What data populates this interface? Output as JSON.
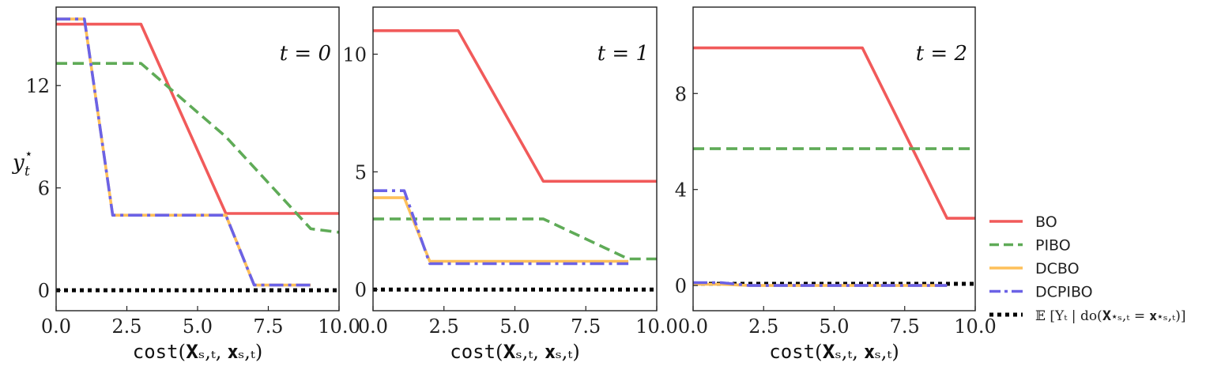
{
  "figure": {
    "ylabel": "y",
    "ylabel_sub": "t",
    "ylabel_sup": "⋆"
  },
  "legend": {
    "position": "right",
    "items": [
      {
        "label": "BO",
        "color": "#f15a5a",
        "style": "solid"
      },
      {
        "label": "PIBO",
        "color": "#5fab57",
        "style": "dashed"
      },
      {
        "label": "DCBO",
        "color": "#fec05a",
        "style": "solid"
      },
      {
        "label": "DCPIBO",
        "color": "#6b62e6",
        "style": "dashdot"
      },
      {
        "label": "𝔼 [Yₜ | do(𝐗⋆ₛ,ₜ = 𝐱⋆ₛ,ₜ)]",
        "color": "#000000",
        "style": "dotted"
      }
    ]
  },
  "chart_data": [
    {
      "type": "line",
      "title": "t = 0",
      "xlabel_prefix": "cost",
      "xlabel_math": "(𝐗ₛ,ₜ, 𝐱ₛ,ₜ)",
      "xlim": [
        0,
        10
      ],
      "ylim": [
        -1.2,
        16.6
      ],
      "xticks": [
        0.0,
        2.5,
        5.0,
        7.5,
        10.0
      ],
      "xtick_labels": [
        "0.0",
        "2.5",
        "5.0",
        "7.5",
        "10.0"
      ],
      "yticks": [
        0,
        6,
        12
      ],
      "ytick_labels": [
        "0",
        "6",
        "12"
      ],
      "series": [
        {
          "name": "BO",
          "x": [
            0,
            3,
            6,
            10
          ],
          "y": [
            15.6,
            15.6,
            4.5,
            4.5
          ]
        },
        {
          "name": "PIBO",
          "x": [
            0,
            3,
            6,
            9,
            10
          ],
          "y": [
            13.3,
            13.3,
            9.0,
            3.6,
            3.4
          ]
        },
        {
          "name": "DCBO",
          "x": [
            0,
            1,
            2,
            6,
            7,
            9
          ],
          "y": [
            15.9,
            15.9,
            4.4,
            4.4,
            0.3,
            0.3
          ]
        },
        {
          "name": "DCPIBO",
          "x": [
            0,
            1,
            2,
            6,
            7,
            9
          ],
          "y": [
            15.9,
            15.9,
            4.4,
            4.4,
            0.3,
            0.3
          ]
        },
        {
          "name": "𝔼 [Yₜ | do(𝐗⋆ₛ,ₜ = 𝐱⋆ₛ,ₜ)]",
          "x": [
            0,
            10
          ],
          "y": [
            0,
            0
          ]
        }
      ]
    },
    {
      "type": "line",
      "title": "t = 1",
      "xlabel_prefix": "cost",
      "xlabel_math": "(𝐗ₛ,ₜ, 𝐱ₛ,ₜ)",
      "xlim": [
        0,
        10
      ],
      "ylim": [
        -0.9,
        12.0
      ],
      "xticks": [
        0.0,
        2.5,
        5.0,
        7.5,
        10.0
      ],
      "xtick_labels": [
        "0.0",
        "2.5",
        "5.0",
        "7.5",
        "10.0"
      ],
      "yticks": [
        0,
        5,
        10
      ],
      "ytick_labels": [
        "0",
        "5",
        "10"
      ],
      "series": [
        {
          "name": "BO",
          "x": [
            0,
            3,
            6,
            10
          ],
          "y": [
            11.0,
            11.0,
            4.6,
            4.6
          ]
        },
        {
          "name": "PIBO",
          "x": [
            0,
            6,
            9,
            10
          ],
          "y": [
            3.0,
            3.0,
            1.3,
            1.3
          ]
        },
        {
          "name": "DCBO",
          "x": [
            0,
            1.1,
            2,
            9
          ],
          "y": [
            3.9,
            3.9,
            1.2,
            1.2
          ]
        },
        {
          "name": "DCPIBO",
          "x": [
            0,
            1.1,
            2,
            9
          ],
          "y": [
            4.2,
            4.2,
            1.1,
            1.1
          ]
        },
        {
          "name": "𝔼 [Yₜ | do(𝐗⋆ₛ,ₜ = 𝐱⋆ₛ,ₜ)]",
          "x": [
            0,
            10
          ],
          "y": [
            0,
            0
          ]
        }
      ]
    },
    {
      "type": "line",
      "title": "t = 2",
      "xlabel_prefix": "cost",
      "xlabel_math": "(𝐗ₛ,ₜ, 𝐱ₛ,ₜ)",
      "xlim": [
        0,
        10
      ],
      "ylim": [
        -1.05,
        11.6
      ],
      "xticks": [
        0.0,
        2.5,
        5.0,
        7.5,
        10.0
      ],
      "xtick_labels": [
        "0.0",
        "2.5",
        "5.0",
        "7.5",
        "10.0"
      ],
      "yticks": [
        0,
        4,
        8
      ],
      "ytick_labels": [
        "0",
        "4",
        "8"
      ],
      "series": [
        {
          "name": "BO",
          "x": [
            0,
            6,
            9,
            10
          ],
          "y": [
            9.9,
            9.9,
            2.8,
            2.8
          ]
        },
        {
          "name": "PIBO",
          "x": [
            0,
            10
          ],
          "y": [
            5.7,
            5.7
          ]
        },
        {
          "name": "DCBO",
          "x": [
            0,
            1,
            2,
            9
          ],
          "y": [
            0.05,
            0.05,
            0.0,
            0.0
          ]
        },
        {
          "name": "DCPIBO",
          "x": [
            0,
            1,
            2,
            9
          ],
          "y": [
            0.12,
            0.12,
            0.0,
            0.0
          ]
        },
        {
          "name": "𝔼 [Yₜ | do(𝐗⋆ₛ,ₜ = 𝐱⋆ₛ,ₜ)]",
          "x": [
            0,
            10
          ],
          "y": [
            0.07,
            0.07
          ]
        }
      ]
    }
  ]
}
